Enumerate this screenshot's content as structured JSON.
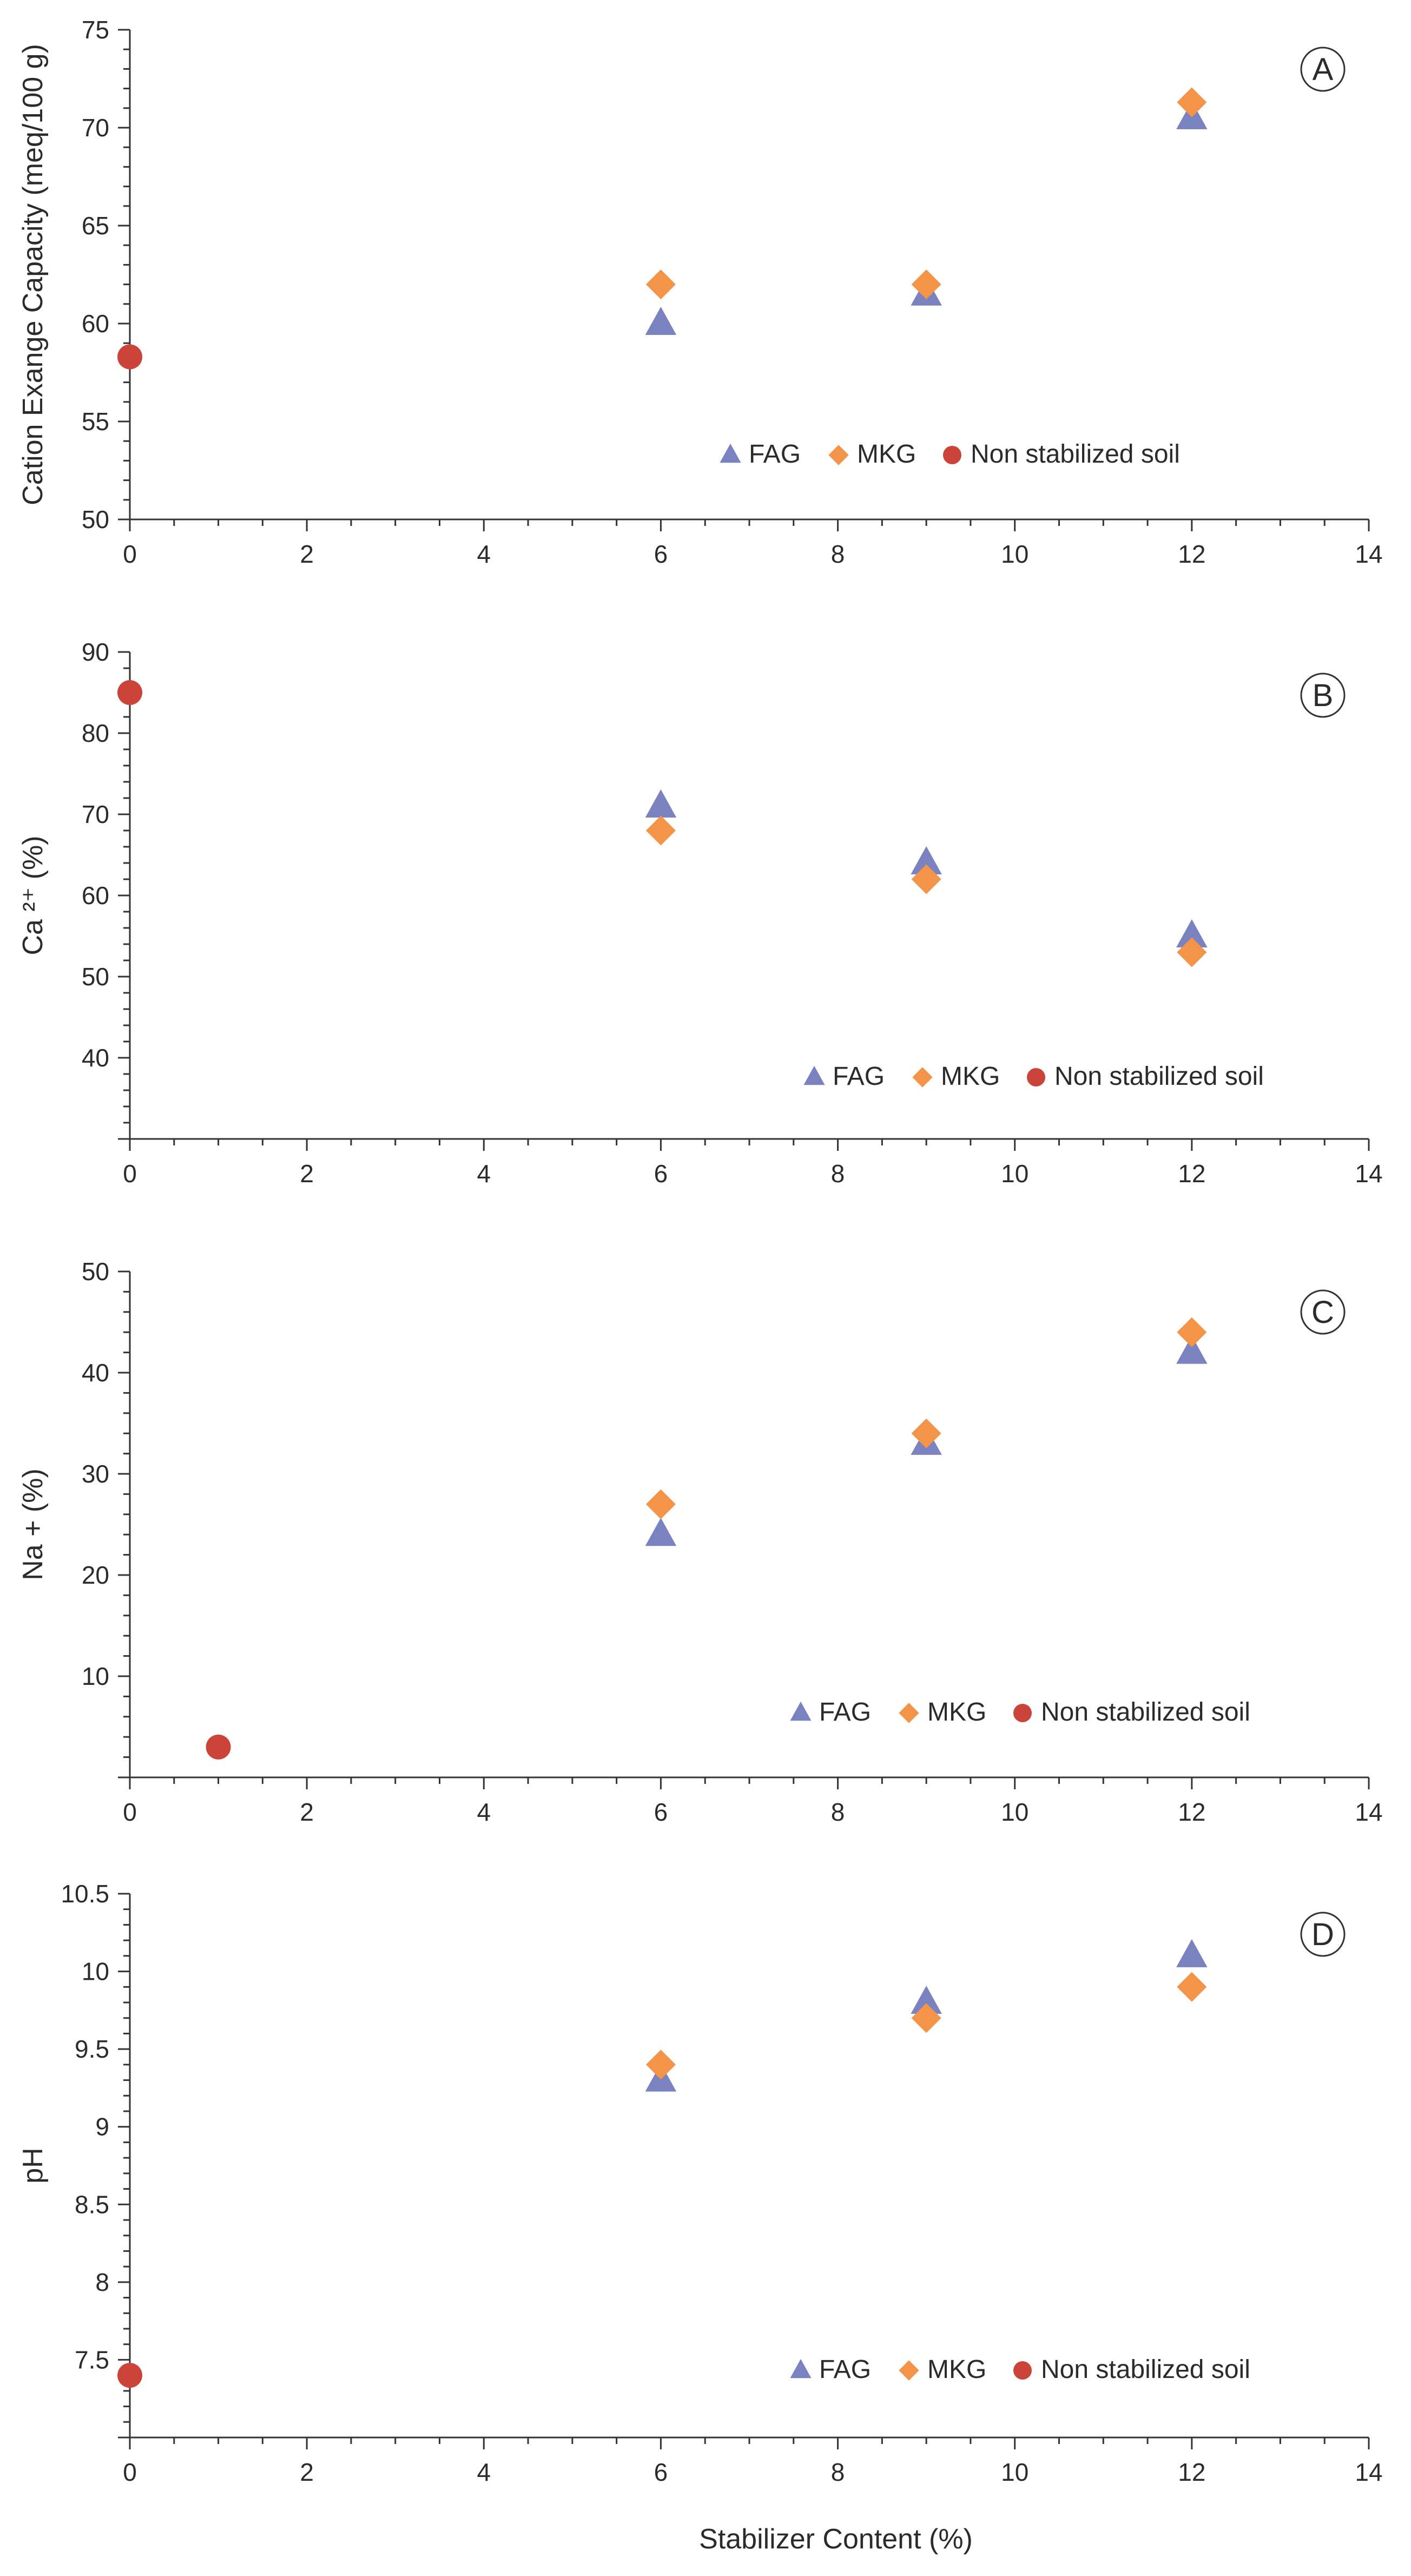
{
  "colors": {
    "fag": "#7b82c0",
    "mkg": "#f39449",
    "soil": "#cc4439",
    "axis": "#333333"
  },
  "chart_data": [
    {
      "type": "scatter",
      "panel": "A",
      "title": "",
      "xlabel": "",
      "ylabel": "Cation Exange Capacity (meq/100 g)",
      "xlim": [
        0,
        14
      ],
      "ylim": [
        50,
        75
      ],
      "xticks": [
        0,
        2,
        4,
        6,
        8,
        10,
        12,
        14
      ],
      "yticks": [
        50,
        55,
        60,
        65,
        70,
        75
      ],
      "legend": [
        "FAG",
        "MKG",
        "Non stabilized soil"
      ],
      "legend_position": "bottom-right",
      "series": [
        {
          "name": "FAG",
          "marker": "triangle",
          "points": [
            [
              6,
              60
            ],
            [
              9,
              61.5
            ],
            [
              12,
              70.5
            ]
          ]
        },
        {
          "name": "MKG",
          "marker": "diamond",
          "points": [
            [
              6,
              62
            ],
            [
              9,
              62
            ],
            [
              12,
              71.3
            ]
          ]
        },
        {
          "name": "Non stabilized soil",
          "marker": "circle",
          "points": [
            [
              0,
              58.3
            ]
          ]
        }
      ]
    },
    {
      "type": "scatter",
      "panel": "B",
      "title": "",
      "xlabel": "",
      "ylabel": "Ca ²⁺ (%)",
      "xlim": [
        0,
        14
      ],
      "ylim": [
        30,
        90
      ],
      "xticks": [
        0,
        2,
        4,
        6,
        8,
        10,
        12,
        14
      ],
      "yticks": [
        40,
        50,
        60,
        70,
        80,
        90
      ],
      "legend": [
        "FAG",
        "MKG",
        "Non stabilized soil"
      ],
      "legend_position": "bottom-right",
      "series": [
        {
          "name": "FAG",
          "marker": "triangle",
          "points": [
            [
              6,
              71
            ],
            [
              9,
              64
            ],
            [
              12,
              55
            ]
          ]
        },
        {
          "name": "MKG",
          "marker": "diamond",
          "points": [
            [
              6,
              68
            ],
            [
              9,
              62
            ],
            [
              12,
              53
            ]
          ]
        },
        {
          "name": "Non stabilized soil",
          "marker": "circle",
          "points": [
            [
              0,
              85
            ]
          ]
        }
      ]
    },
    {
      "type": "scatter",
      "panel": "C",
      "title": "",
      "xlabel": "",
      "ylabel": "Na + (%)",
      "xlim": [
        0,
        14
      ],
      "ylim": [
        0,
        50
      ],
      "xticks": [
        0,
        2,
        4,
        6,
        8,
        10,
        12,
        14
      ],
      "yticks": [
        10,
        20,
        30,
        40,
        50
      ],
      "legend": [
        "FAG",
        "MKG",
        "Non stabilized soil"
      ],
      "legend_position": "bottom-right",
      "series": [
        {
          "name": "FAG",
          "marker": "triangle",
          "points": [
            [
              6,
              24
            ],
            [
              9,
              33
            ],
            [
              12,
              42
            ]
          ]
        },
        {
          "name": "MKG",
          "marker": "diamond",
          "points": [
            [
              6,
              27
            ],
            [
              9,
              34
            ],
            [
              12,
              44
            ]
          ]
        },
        {
          "name": "Non stabilized soil",
          "marker": "circle",
          "points": [
            [
              1,
              3
            ]
          ]
        }
      ]
    },
    {
      "type": "scatter",
      "panel": "D",
      "title": "",
      "xlabel": "Stabilizer Content (%)",
      "ylabel": "pH",
      "xlim": [
        0,
        14
      ],
      "ylim": [
        7,
        10.5
      ],
      "xticks": [
        0,
        2,
        4,
        6,
        8,
        10,
        12,
        14
      ],
      "yticks": [
        7.5,
        8,
        8.5,
        9,
        9.5,
        10,
        10.5
      ],
      "legend": [
        "FAG",
        "MKG",
        "Non stabilized soil"
      ],
      "legend_position": "bottom-right",
      "series": [
        {
          "name": "FAG",
          "marker": "triangle",
          "points": [
            [
              6,
              9.3
            ],
            [
              9,
              9.8
            ],
            [
              12,
              10.1
            ]
          ]
        },
        {
          "name": "MKG",
          "marker": "diamond",
          "points": [
            [
              6,
              9.4
            ],
            [
              9,
              9.7
            ],
            [
              12,
              9.9
            ]
          ]
        },
        {
          "name": "Non stabilized soil",
          "marker": "circle",
          "points": [
            [
              0,
              7.4
            ]
          ]
        }
      ]
    }
  ]
}
